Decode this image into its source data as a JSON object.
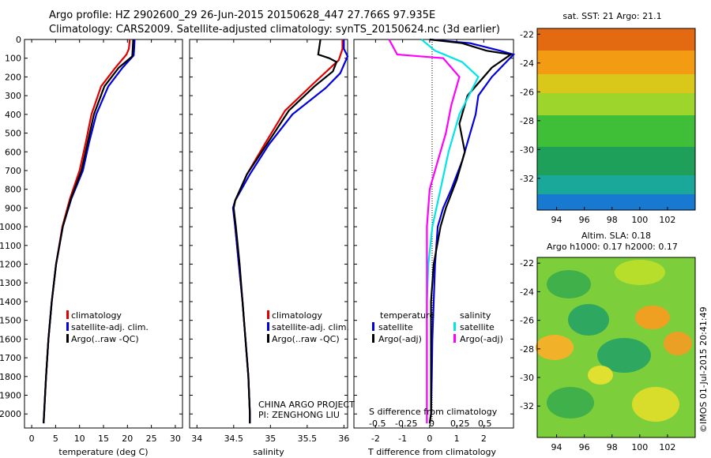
{
  "title_line1": "Argo profile: HZ 2902600_29 26-Jun-2015 20150628_447 27.766S 97.935E",
  "title_line2": "Climatology: CARS2009. Satellite-adjusted climatology: synTS_20150624.nc (3d earlier)",
  "credit": "©IMOS 01-Jul-2015 20:41:49",
  "project_line1": "CHINA ARGO PROJECT",
  "project_line2": "PI: ZENGHONG LIU",
  "colors": {
    "climatology": "#e00000",
    "satellite": "#0000e0",
    "argo": "#000000",
    "sal_sat": "#00e5e5",
    "sal_argo": "#ff00ff"
  },
  "map_sst": {
    "title": "sat. SST: 21 Argo: 21.1",
    "x_ticks": [
      "94",
      "96",
      "98",
      "100",
      "102"
    ],
    "y_ticks": [
      "-22",
      "-24",
      "-26",
      "-28",
      "-30",
      "-32"
    ]
  },
  "map_sla": {
    "title_line1": "Altim. SLA: 0.18",
    "title_line2": "Argo h1000: 0.17 h2000: 0.17",
    "x_ticks": [
      "94",
      "96",
      "98",
      "100",
      "102"
    ],
    "y_ticks": [
      "-22",
      "-24",
      "-26",
      "-28",
      "-30",
      "-32"
    ]
  },
  "chart_data": [
    {
      "type": "line",
      "xlabel": "temperature (deg C)",
      "x_ticks": [
        0,
        5,
        10,
        15,
        20,
        25,
        30
      ],
      "xlim": [
        -1.5,
        31.5
      ],
      "ylim": [
        2075,
        0
      ],
      "y_ticks": [
        0,
        100,
        200,
        300,
        400,
        500,
        600,
        700,
        800,
        900,
        1000,
        1100,
        1200,
        1300,
        1400,
        1500,
        1600,
        1700,
        1800,
        1900,
        2000
      ],
      "legend": [
        "climatology",
        "satellite-adj. clim.",
        "Argo(..raw -QC)"
      ],
      "series": [
        {
          "name": "climatology",
          "color": "#e00000",
          "points": [
            [
              20.5,
              0
            ],
            [
              20.3,
              50
            ],
            [
              19.8,
              80
            ],
            [
              17.5,
              150
            ],
            [
              14.5,
              250
            ],
            [
              12.5,
              400
            ],
            [
              11.3,
              550
            ],
            [
              10,
              700
            ],
            [
              8,
              850
            ],
            [
              6.4,
              1000
            ],
            [
              5.1,
              1200
            ],
            [
              4.2,
              1400
            ],
            [
              3.5,
              1600
            ],
            [
              3,
              1800
            ],
            [
              2.6,
              2000
            ],
            [
              2.5,
              2050
            ]
          ]
        },
        {
          "name": "satellite-adj. clim.",
          "color": "#0000e0",
          "points": [
            [
              21.5,
              0
            ],
            [
              21.4,
              50
            ],
            [
              21.3,
              85
            ],
            [
              19,
              150
            ],
            [
              16,
              250
            ],
            [
              13.5,
              400
            ],
            [
              12,
              550
            ],
            [
              10.7,
              700
            ],
            [
              8.3,
              850
            ],
            [
              6.5,
              1000
            ],
            [
              5.1,
              1200
            ],
            [
              4.2,
              1400
            ],
            [
              3.5,
              1600
            ],
            [
              3,
              1800
            ],
            [
              2.6,
              2000
            ],
            [
              2.5,
              2050
            ]
          ]
        },
        {
          "name": "Argo(..raw -QC)",
          "color": "#000000",
          "points": [
            [
              21.2,
              0
            ],
            [
              21.1,
              50
            ],
            [
              21,
              90
            ],
            [
              18.2,
              150
            ],
            [
              15.2,
              250
            ],
            [
              13,
              400
            ],
            [
              11.7,
              550
            ],
            [
              10.4,
              700
            ],
            [
              8.2,
              850
            ],
            [
              6.5,
              1000
            ],
            [
              5.1,
              1200
            ],
            [
              4.2,
              1400
            ],
            [
              3.5,
              1600
            ],
            [
              3,
              1800
            ],
            [
              2.6,
              2000
            ],
            [
              2.5,
              2050
            ]
          ]
        }
      ]
    },
    {
      "type": "line",
      "xlabel": "salinity",
      "x_ticks": [
        34,
        34.5,
        35,
        35.5,
        36
      ],
      "xlim": [
        33.9,
        36.05
      ],
      "ylim": [
        2075,
        0
      ],
      "legend": [
        "climatology",
        "satellite-adj. clim.",
        "Argo(..raw -QC)"
      ],
      "series": [
        {
          "name": "climatology",
          "color": "#e00000",
          "points": [
            [
              35.98,
              0
            ],
            [
              35.98,
              50
            ],
            [
              35.93,
              110
            ],
            [
              35.6,
              230
            ],
            [
              35.2,
              380
            ],
            [
              34.92,
              560
            ],
            [
              34.68,
              720
            ],
            [
              34.52,
              860
            ],
            [
              34.5,
              900
            ],
            [
              34.52,
              1000
            ],
            [
              34.57,
              1200
            ],
            [
              34.62,
              1400
            ],
            [
              34.66,
              1600
            ],
            [
              34.7,
              1800
            ],
            [
              34.72,
              2000
            ],
            [
              34.72,
              2050
            ]
          ]
        },
        {
          "name": "satellite-adj. clim.",
          "color": "#0000e0",
          "points": [
            [
              36,
              0
            ],
            [
              36,
              50
            ],
            [
              36.05,
              90
            ],
            [
              35.95,
              180
            ],
            [
              35.75,
              260
            ],
            [
              35.3,
              400
            ],
            [
              34.98,
              560
            ],
            [
              34.72,
              720
            ],
            [
              34.52,
              860
            ],
            [
              34.49,
              900
            ],
            [
              34.52,
              1000
            ],
            [
              34.57,
              1200
            ],
            [
              34.62,
              1400
            ],
            [
              34.66,
              1600
            ],
            [
              34.7,
              1800
            ],
            [
              34.72,
              2000
            ],
            [
              34.72,
              2050
            ]
          ]
        },
        {
          "name": "Argo(..raw -QC)",
          "color": "#000000",
          "points": [
            [
              35.68,
              0
            ],
            [
              35.65,
              80
            ],
            [
              35.8,
              100
            ],
            [
              35.9,
              120
            ],
            [
              35.85,
              170
            ],
            [
              35.6,
              250
            ],
            [
              35.25,
              380
            ],
            [
              34.95,
              560
            ],
            [
              34.68,
              720
            ],
            [
              34.52,
              860
            ],
            [
              34.5,
              900
            ],
            [
              34.53,
              1000
            ],
            [
              34.58,
              1200
            ],
            [
              34.62,
              1400
            ],
            [
              34.66,
              1600
            ],
            [
              34.7,
              1800
            ],
            [
              34.72,
              2000
            ],
            [
              34.72,
              2050
            ]
          ]
        }
      ]
    },
    {
      "type": "line",
      "xlabel": "T difference from climatology",
      "x_ticks": [
        -2,
        -1,
        0,
        1,
        2
      ],
      "xlim": [
        -2.8,
        3.1
      ],
      "ylim": [
        2075,
        0
      ],
      "secondary_axis_label": "S difference from climatology",
      "secondary_ticks": [
        "-0.5",
        "-0.25",
        "0",
        "0.25",
        "0.5"
      ],
      "legend_left_title": "temperature",
      "legend_right_title": "salinity",
      "legend": [
        "satellite",
        "Argo(-adj)",
        "satellite",
        "Argo(-adj)"
      ],
      "series": [
        {
          "name": "satellite",
          "color": "#0000e0",
          "points": [
            [
              0,
              0
            ],
            [
              1.5,
              20
            ],
            [
              2.6,
              60
            ],
            [
              3.1,
              80
            ],
            [
              2.3,
              200
            ],
            [
              1.8,
              300
            ],
            [
              1.7,
              400
            ],
            [
              1.5,
              500
            ],
            [
              1.2,
              650
            ],
            [
              0.8,
              800
            ],
            [
              0.5,
              900
            ],
            [
              0.3,
              1000
            ],
            [
              0.2,
              1200
            ],
            [
              0.15,
              1400
            ],
            [
              0.1,
              1600
            ],
            [
              0.08,
              1800
            ],
            [
              0.05,
              2000
            ],
            [
              0,
              2050
            ]
          ]
        },
        {
          "name": "Argo(-adj)",
          "color": "#000000",
          "points": [
            [
              0,
              0
            ],
            [
              1.2,
              20
            ],
            [
              2.1,
              60
            ],
            [
              3.0,
              80
            ],
            [
              2.3,
              150
            ],
            [
              1.4,
              300
            ],
            [
              1.1,
              450
            ],
            [
              1.3,
              600
            ],
            [
              1.0,
              750
            ],
            [
              0.6,
              900
            ],
            [
              0.4,
              1000
            ],
            [
              0.15,
              1200
            ],
            [
              0.05,
              1400
            ],
            [
              0.05,
              1600
            ],
            [
              0.05,
              1800
            ],
            [
              0.05,
              2000
            ],
            [
              0,
              2050
            ]
          ]
        },
        {
          "name": "satellite",
          "color": "#00e5e5",
          "points": [
            [
              -0.3,
              0
            ],
            [
              0.2,
              60
            ],
            [
              1.2,
              120
            ],
            [
              1.8,
              200
            ],
            [
              1.1,
              400
            ],
            [
              0.7,
              600
            ],
            [
              0.4,
              800
            ],
            [
              0.1,
              1000
            ],
            [
              -0.05,
              1200
            ],
            [
              -0.1,
              1400
            ],
            [
              -0.1,
              1600
            ],
            [
              -0.1,
              1800
            ],
            [
              -0.1,
              2000
            ],
            [
              -0.1,
              2050
            ]
          ]
        },
        {
          "name": "Argo(-adj)",
          "color": "#ff00ff",
          "points": [
            [
              -1.5,
              0
            ],
            [
              -1.2,
              80
            ],
            [
              0.5,
              100
            ],
            [
              1.1,
              200
            ],
            [
              0.8,
              350
            ],
            [
              0.6,
              500
            ],
            [
              0.3,
              650
            ],
            [
              0,
              800
            ],
            [
              -0.1,
              1000
            ],
            [
              -0.1,
              1200
            ],
            [
              -0.1,
              1400
            ],
            [
              -0.1,
              1600
            ],
            [
              -0.1,
              1800
            ],
            [
              -0.1,
              2000
            ],
            [
              -0.1,
              2050
            ]
          ]
        }
      ]
    }
  ]
}
